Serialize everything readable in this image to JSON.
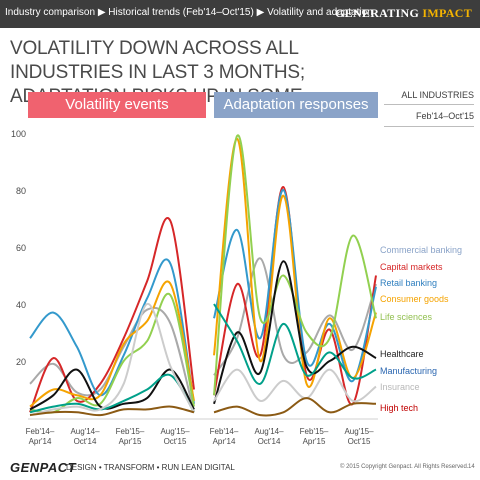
{
  "header": {
    "breadcrumb": "Industry comparison ▶ Historical trends (Feb'14–Oct'15) ▶ Volatility and adaptation",
    "brand_part1": "GEN",
    "brand_part2": "ERATING ",
    "brand_part3": "IMPACT"
  },
  "title": "VOLATILITY DOWN ACROSS ALL INDUSTRIES IN LAST 3 MONTHS; ADAPTATION PICKS UP IN SOME",
  "filters": {
    "industry": "ALL INDUSTRIES",
    "period": "Feb'14–Oct'15"
  },
  "footer": {
    "logo": "GENPACT",
    "tagline": "DESIGN • TRANSFORM • RUN LEAN DIGITAL",
    "copyright": "© 2015 Copyright Genpact. All Rights Reserved.",
    "page": "14"
  },
  "colors": {
    "volatility_header": "#f0626f",
    "adaptation_header": "#8aa3c8"
  },
  "chart_data": {
    "type": "line",
    "ylim": [
      0,
      100
    ],
    "yticks": [
      20,
      40,
      60,
      80,
      100
    ],
    "grid": false,
    "legend": "right",
    "panels": [
      {
        "title": "Volatility events",
        "x": [
          "Feb'14–Apr'14",
          "Aug'14–Oct'14",
          "Feb'15–Apr'15",
          "Aug'15–Oct'15"
        ],
        "x_points": [
          0,
          1,
          2,
          3,
          4,
          5,
          6,
          7
        ],
        "series": [
          {
            "name": "Commercial banking",
            "color": "#a9a9a9",
            "values": [
              12,
              19,
              9,
              10,
              25,
              38,
              33,
              2
            ]
          },
          {
            "name": "Capital markets",
            "color": "#d62728",
            "values": [
              2,
              21,
              6,
              12,
              28,
              48,
              69,
              10
            ]
          },
          {
            "name": "Retail banking",
            "color": "#3399cc",
            "values": [
              28,
              37,
              25,
              8,
              22,
              42,
              54,
              5
            ]
          },
          {
            "name": "Consumer goods",
            "color": "#f5a300",
            "values": [
              4,
              10,
              8,
              8,
              26,
              34,
              47,
              6
            ]
          },
          {
            "name": "Life sciences",
            "color": "#92d050",
            "values": [
              3,
              2,
              7,
              5,
              20,
              27,
              43,
              4
            ]
          },
          {
            "name": "Healthcare",
            "color": "#111111",
            "values": [
              3,
              8,
              17,
              4,
              5,
              7,
              17,
              3
            ]
          },
          {
            "name": "Manufacturing",
            "color": "#00a08a",
            "values": [
              2,
              4,
              5,
              3,
              6,
              10,
              15,
              2
            ]
          },
          {
            "name": "Insurance",
            "color": "#cccccc",
            "values": [
              1,
              3,
              4,
              3,
              12,
              40,
              18,
              2
            ]
          },
          {
            "name": "High tech",
            "color": "#8b5a14",
            "values": [
              1,
              2,
              2,
              1,
              3,
              3,
              4,
              2
            ]
          }
        ]
      },
      {
        "title": "Adaptation responses",
        "x": [
          "Feb'14–Apr'14",
          "Aug'14–Oct'14",
          "Feb'15–Apr'15",
          "Aug'15–Oct'15"
        ],
        "x_points": [
          0,
          1,
          2,
          3,
          4,
          5,
          6,
          7
        ],
        "series": [
          {
            "name": "Commercial banking",
            "color": "#a9a9a9",
            "values": [
              15,
              28,
              56,
              22,
              23,
              36,
              24,
              47
            ]
          },
          {
            "name": "Capital markets",
            "color": "#d62728",
            "values": [
              8,
              47,
              22,
              81,
              15,
              31,
              5,
              50
            ]
          },
          {
            "name": "Retail banking",
            "color": "#3399cc",
            "values": [
              35,
              66,
              28,
              80,
              20,
              33,
              13,
              46
            ]
          },
          {
            "name": "Consumer goods",
            "color": "#f5a300",
            "values": [
              22,
              98,
              20,
              78,
              12,
              35,
              14,
              37
            ]
          },
          {
            "name": "Life sciences",
            "color": "#92d050",
            "values": [
              8,
              99,
              35,
              50,
              30,
              28,
              64,
              35
            ]
          },
          {
            "name": "Healthcare",
            "color": "#111111",
            "values": [
              5,
              30,
              16,
              55,
              18,
              20,
              25,
              21
            ]
          },
          {
            "name": "Manufacturing",
            "color": "#00a08a",
            "values": [
              40,
              27,
              12,
              33,
              15,
              23,
              14,
              17
            ]
          },
          {
            "name": "Insurance",
            "color": "#cccccc",
            "values": [
              6,
              17,
              6,
              13,
              7,
              17,
              6,
              11
            ]
          },
          {
            "name": "High tech",
            "color": "#8b5a14",
            "values": [
              2,
              4,
              1,
              2,
              7,
              2,
              5,
              5
            ]
          }
        ]
      }
    ],
    "legend_labels": [
      {
        "name": "Commercial banking",
        "color": "#8aa3c8"
      },
      {
        "name": "Capital markets",
        "color": "#d62728"
      },
      {
        "name": "Retail banking",
        "color": "#2f7fbf"
      },
      {
        "name": "Consumer goods",
        "color": "#f5a300"
      },
      {
        "name": "Life sciences",
        "color": "#92c050"
      },
      {
        "name": "Healthcare",
        "color": "#222222"
      },
      {
        "name": "Manufacturing",
        "color": "#2a66b0"
      },
      {
        "name": "Insurance",
        "color": "#b8b8b8"
      },
      {
        "name": "High tech",
        "color": "#c00000"
      }
    ]
  }
}
